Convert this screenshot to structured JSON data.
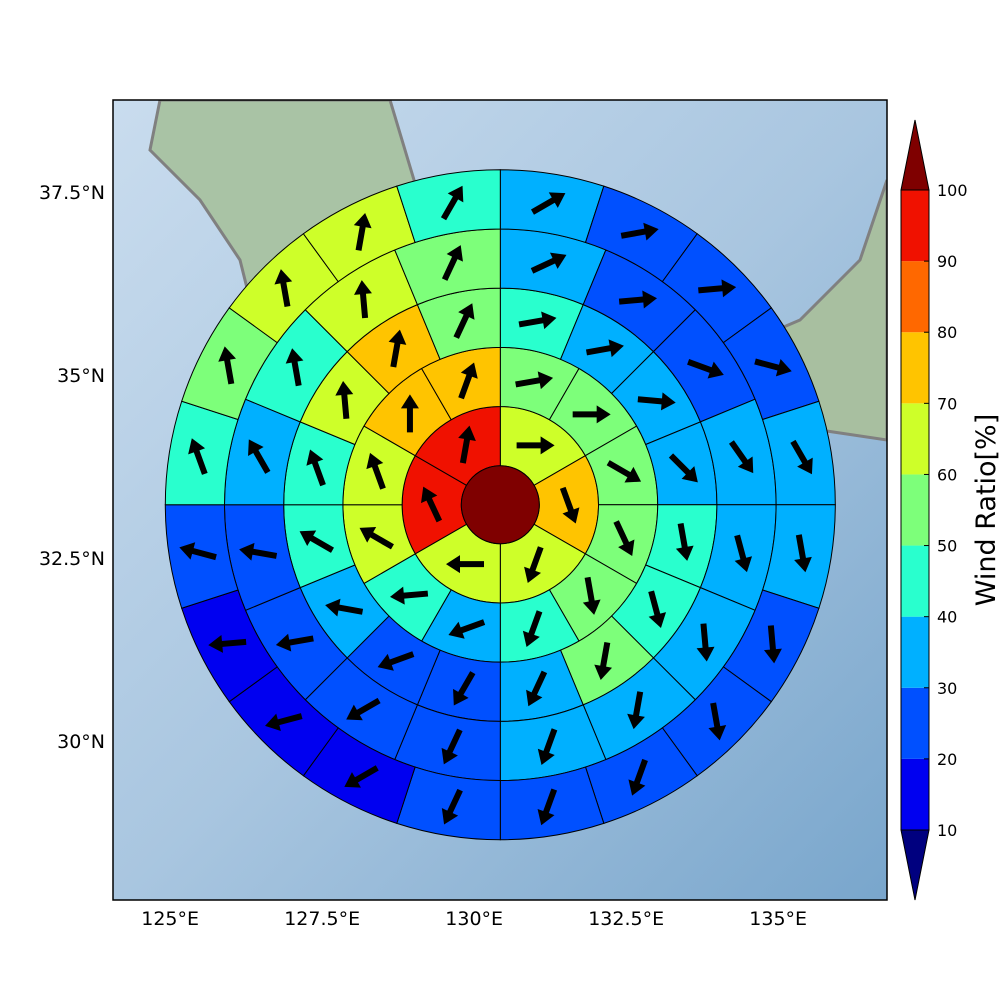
{
  "chart_data": {
    "type": "polar-sector-map",
    "xlim": [
      124.06,
      136.79
    ],
    "ylim": [
      27.83,
      38.76
    ],
    "xticks": [
      {
        "value": 125,
        "label": "125°E"
      },
      {
        "value": 127.5,
        "label": "127.5°E"
      },
      {
        "value": 130,
        "label": "130°E"
      },
      {
        "value": 132.5,
        "label": "132.5°E"
      },
      {
        "value": 135,
        "label": "135°E"
      }
    ],
    "yticks": [
      {
        "value": 30,
        "label": "30°N"
      },
      {
        "value": 32.5,
        "label": "32.5°N"
      },
      {
        "value": 35,
        "label": "35°N"
      },
      {
        "value": 37.5,
        "label": "37.5°N"
      }
    ],
    "grid": true,
    "center": {
      "lon": 130.43,
      "lat": 33.23,
      "value": 105
    },
    "rings": [
      {
        "values": [
          65,
          75,
          65,
          65,
          95,
          95
        ],
        "directions": [
          90,
          160,
          200,
          270,
          335,
          10
        ]
      },
      {
        "values": [
          55,
          55,
          55,
          55,
          55,
          45,
          35,
          45,
          65,
          65,
          75,
          75
        ],
        "directions": [
          80,
          90,
          120,
          155,
          170,
          200,
          250,
          265,
          300,
          340,
          0,
          20
        ]
      },
      {
        "values": [
          45,
          35,
          35,
          35,
          45,
          45,
          55,
          35,
          25,
          25,
          35,
          45,
          45,
          65,
          75,
          55
        ],
        "directions": [
          80,
          80,
          95,
          135,
          170,
          165,
          190,
          205,
          210,
          250,
          280,
          300,
          340,
          355,
          10,
          25
        ]
      },
      {
        "values": [
          35,
          25,
          25,
          35,
          35,
          35,
          35,
          35,
          25,
          25,
          25,
          25,
          35,
          45,
          65,
          55
        ],
        "directions": [
          65,
          85,
          110,
          145,
          165,
          175,
          190,
          200,
          205,
          240,
          260,
          280,
          330,
          350,
          355,
          25
        ]
      },
      {
        "values": [
          35,
          25,
          25,
          25,
          35,
          35,
          25,
          25,
          25,
          25,
          25,
          15,
          15,
          15,
          25,
          45,
          55,
          65,
          65,
          45
        ],
        "directions": [
          60,
          80,
          85,
          105,
          150,
          170,
          175,
          170,
          200,
          200,
          205,
          240,
          255,
          265,
          285,
          340,
          350,
          350,
          10,
          30
        ]
      }
    ],
    "colorbar": {
      "label": "Wind Ratio[%]",
      "levels": [
        10,
        20,
        30,
        40,
        50,
        60,
        70,
        80,
        90,
        100
      ],
      "colors": [
        "#00007f",
        "#0000f0",
        "#0050ff",
        "#00b0ff",
        "#29ffce",
        "#7dff7a",
        "#ceff29",
        "#ffc400",
        "#ff6800",
        "#f01100",
        "#7f0000"
      ]
    }
  }
}
